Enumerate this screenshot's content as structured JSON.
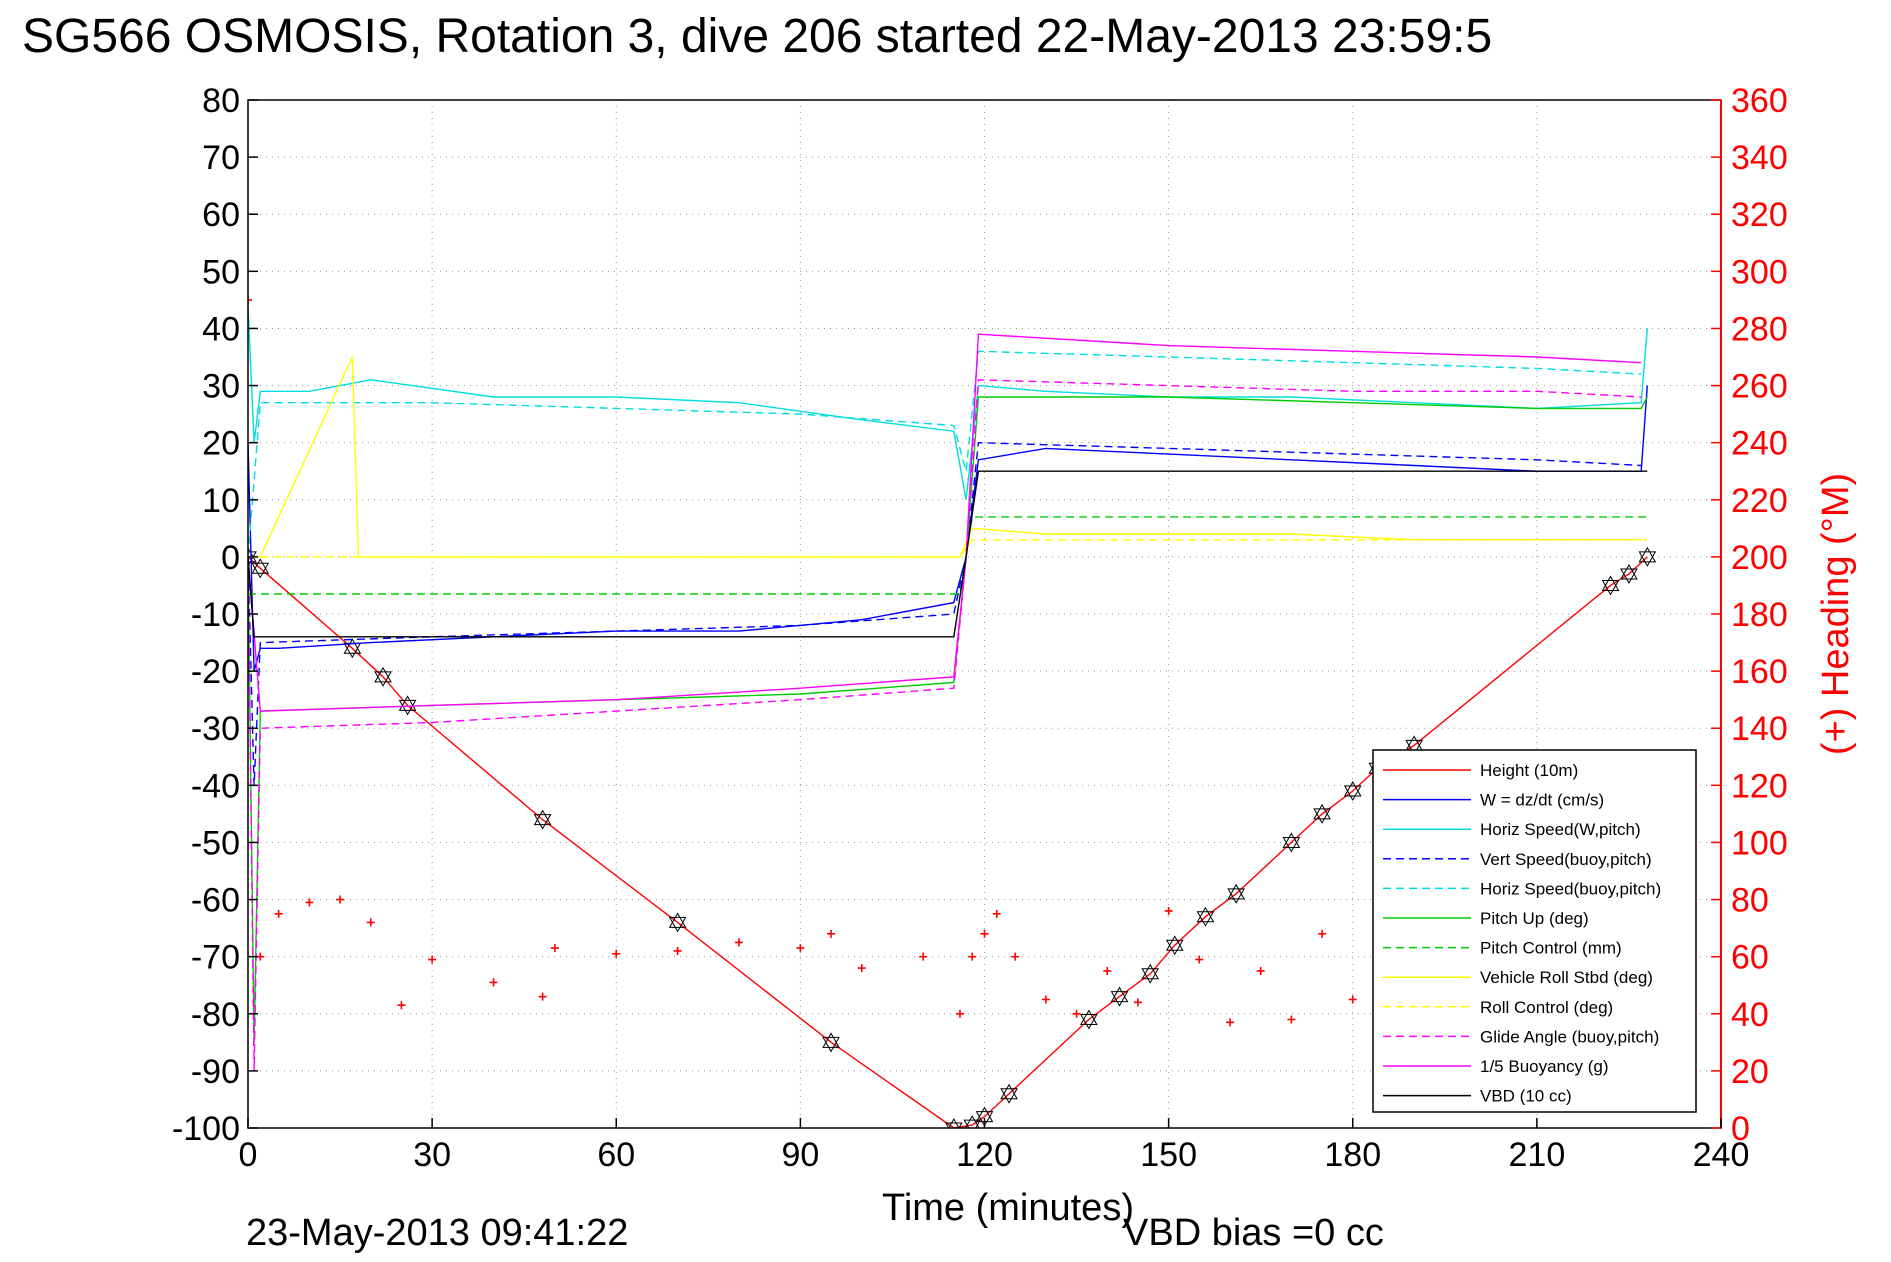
{
  "title": "SG566 OSMOSIS, Rotation 3, dive 206 started 22-May-2013 23:59:5",
  "footer_date": "23-May-2013 09:41:22",
  "footer_bias": "VBD bias =0 cc",
  "chart_data": {
    "type": "line",
    "xlabel": "Time (minutes)",
    "ylabel": "",
    "y2label": "(+) Heading (°M)",
    "xlim": [
      0,
      240
    ],
    "ylim": [
      -100,
      80
    ],
    "y2lim": [
      0,
      360
    ],
    "xticks": [
      "0",
      "30",
      "60",
      "90",
      "120",
      "150",
      "180",
      "210",
      "240"
    ],
    "yticks": [
      "80",
      "70",
      "60",
      "50",
      "40",
      "30",
      "20",
      "10",
      "0",
      "-10",
      "-20",
      "-30",
      "-40",
      "-50",
      "-60",
      "-70",
      "-80",
      "-90",
      "-100"
    ],
    "y2ticks": [
      "360",
      "340",
      "320",
      "300",
      "280",
      "260",
      "240",
      "220",
      "200",
      "180",
      "160",
      "140",
      "120",
      "100",
      "80",
      "60",
      "40",
      "20",
      "0"
    ],
    "grid": true,
    "legend_position": "bottom-right",
    "series": [
      {
        "name": "Height (10m)",
        "color": "#ff0000",
        "style": "solid",
        "x": [
          0,
          2,
          17,
          22,
          26,
          48,
          70,
          95,
          115,
          118,
          120,
          124,
          137,
          142,
          147,
          151,
          156,
          161,
          170,
          175,
          180,
          184,
          190,
          222,
          225,
          228
        ],
        "y": [
          0,
          -2,
          -16,
          -21,
          -26,
          -46,
          -64,
          -85,
          -100,
          -99.5,
          -98,
          -94,
          -81,
          -77,
          -73,
          -68,
          -63,
          -59,
          -50,
          -45,
          -41,
          -37,
          -33,
          -5,
          -3,
          0
        ]
      },
      {
        "name": "W = dz/dt (cm/s)",
        "color": "#0000ff",
        "style": "solid",
        "x": [
          0,
          1,
          2,
          5,
          20,
          40,
          60,
          80,
          100,
          115,
          117,
          119,
          130,
          150,
          170,
          190,
          210,
          227,
          228
        ],
        "y": [
          20,
          -20,
          -16,
          -16,
          -15,
          -14,
          -13,
          -13,
          -11,
          -8,
          0,
          17,
          19,
          18,
          17,
          16,
          15,
          15,
          30
        ]
      },
      {
        "name": "Horiz Speed(W,pitch)",
        "color": "#00dddd",
        "style": "solid",
        "x": [
          0,
          1,
          2,
          10,
          20,
          40,
          60,
          80,
          100,
          115,
          117,
          119,
          130,
          150,
          170,
          190,
          210,
          227,
          228
        ],
        "y": [
          44,
          20,
          29,
          29,
          31,
          28,
          28,
          27,
          24,
          22,
          10,
          30,
          29,
          28,
          28,
          27,
          26,
          27,
          40
        ]
      },
      {
        "name": "Vert Speed(buoy,pitch)",
        "color": "#0000ff",
        "style": "dashed",
        "x": [
          0,
          1,
          2,
          30,
          60,
          90,
          115,
          117,
          119,
          150,
          180,
          210,
          227
        ],
        "y": [
          0,
          -40,
          -15,
          -14,
          -13,
          -12,
          -10,
          0,
          20,
          19,
          18,
          17,
          16
        ]
      },
      {
        "name": "Horiz Speed(buoy,pitch)",
        "color": "#00dddd",
        "style": "dashed",
        "x": [
          0,
          2,
          30,
          60,
          90,
          115,
          117,
          119,
          150,
          180,
          210,
          227
        ],
        "y": [
          0,
          27,
          27,
          26,
          25,
          23,
          15,
          36,
          35,
          34,
          33,
          32
        ]
      },
      {
        "name": "Pitch Up (deg)",
        "color": "#00cc00",
        "style": "solid",
        "x": [
          0,
          1,
          2,
          30,
          60,
          90,
          115,
          117,
          119,
          150,
          180,
          210,
          227,
          228
        ],
        "y": [
          0,
          -85,
          -27,
          -26,
          -25,
          -24,
          -22,
          0,
          28,
          28,
          27,
          26,
          26,
          28
        ]
      },
      {
        "name": "Pitch Control (mm)",
        "color": "#00cc00",
        "style": "dashed",
        "x": [
          0,
          2,
          60,
          116,
          118,
          228
        ],
        "y": [
          -6.5,
          -6.5,
          -6.5,
          -6.5,
          7,
          7
        ]
      },
      {
        "name": "Vehicle Roll Stbd (deg)",
        "color": "#ffff00",
        "style": "solid",
        "x": [
          0,
          2,
          17,
          18,
          60,
          116,
          118,
          130,
          150,
          170,
          190,
          210,
          227
        ],
        "y": [
          0,
          0,
          35,
          0,
          0,
          0,
          5,
          4,
          4,
          4,
          3,
          3,
          3
        ]
      },
      {
        "name": "Roll Control (deg)",
        "color": "#ffff00",
        "style": "dashed",
        "x": [
          0,
          116,
          118,
          228
        ],
        "y": [
          0,
          0,
          3,
          3
        ]
      },
      {
        "name": "Glide Angle (buoy,pitch)",
        "color": "#ff00ff",
        "style": "dashed",
        "x": [
          0,
          1,
          2,
          30,
          60,
          90,
          115,
          117,
          119,
          150,
          180,
          210,
          227
        ],
        "y": [
          0,
          -90,
          -30,
          -29,
          -27,
          -25,
          -23,
          0,
          31,
          30,
          29,
          29,
          28
        ]
      },
      {
        "name": "1/5 Buoyancy (g)",
        "color": "#ff00ff",
        "style": "solid",
        "x": [
          0,
          2,
          30,
          60,
          90,
          115,
          117,
          119,
          150,
          180,
          210,
          227
        ],
        "y": [
          0,
          -27,
          -26,
          -25,
          -23,
          -21,
          0,
          39,
          37,
          36,
          35,
          34
        ]
      },
      {
        "name": "VBD (10 cc)",
        "color": "#000000",
        "style": "solid",
        "x": [
          0,
          1,
          2,
          48,
          115,
          117,
          119,
          228
        ],
        "y": [
          0,
          -14,
          -14,
          -14,
          -14,
          0,
          15,
          15
        ]
      },
      {
        "name": "Heading",
        "color": "#ff0000",
        "style": "markers",
        "axis": "y2",
        "x": [
          0,
          2,
          5,
          10,
          15,
          20,
          25,
          30,
          40,
          48,
          50,
          60,
          70,
          80,
          90,
          95,
          100,
          110,
          116,
          118,
          120,
          122,
          125,
          130,
          135,
          140,
          145,
          150,
          155,
          160,
          165,
          170,
          175,
          180,
          185,
          190
        ],
        "y": [
          290,
          60,
          75,
          79,
          80,
          72,
          43,
          59,
          51,
          46,
          63,
          61,
          62,
          65,
          63,
          68,
          56,
          60,
          40,
          60,
          68,
          75,
          60,
          45,
          40,
          55,
          44,
          76,
          59,
          37,
          55,
          38,
          68,
          45,
          64,
          70
        ]
      }
    ]
  }
}
